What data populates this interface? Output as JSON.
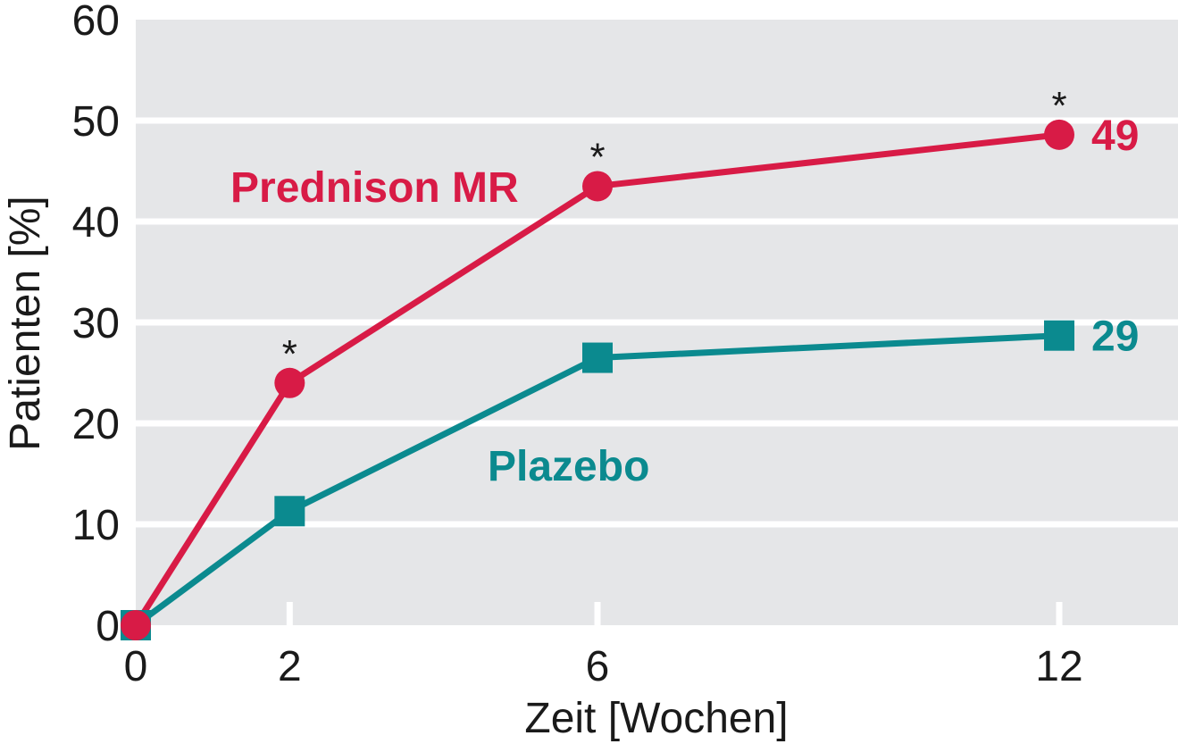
{
  "chart_data": {
    "type": "line",
    "title": "",
    "xlabel": "Zeit [Wochen]",
    "ylabel": "Patienten [%]",
    "x": [
      0,
      2,
      6,
      12
    ],
    "x_ticks": [
      "0",
      "2",
      "6",
      "12"
    ],
    "y_ticks": [
      "0",
      "10",
      "20",
      "30",
      "40",
      "50",
      "60"
    ],
    "ylim": [
      0,
      60
    ],
    "xlim": [
      0,
      13.5
    ],
    "grid": "horizontal",
    "series": [
      {
        "name": "Prednison MR",
        "values": [
          0,
          24,
          43.5,
          48.6
        ],
        "color": "#d81b46",
        "marker": "circle",
        "end_label": "49",
        "significance": [
          "",
          "*",
          "*",
          "*"
        ]
      },
      {
        "name": "Plazebo",
        "values": [
          0,
          11.3,
          26.5,
          28.7
        ],
        "color": "#0b8a8f",
        "marker": "square",
        "end_label": "29"
      }
    ]
  },
  "colors": {
    "plot_background": "#e5e6e8",
    "gridline": "#ffffff",
    "text": "#1a1a1a"
  }
}
